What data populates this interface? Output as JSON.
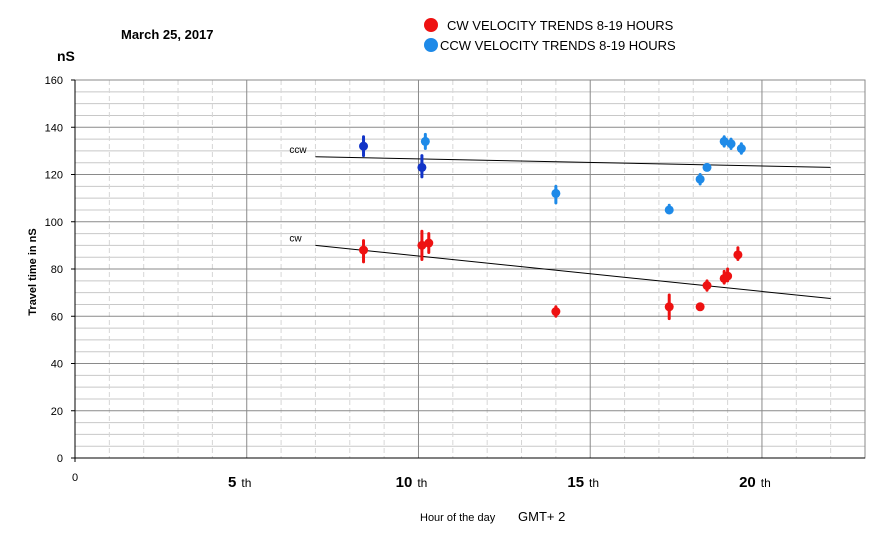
{
  "chart_data": {
    "type": "scatter",
    "date": "March 25,  2017",
    "yunit": "nS",
    "ylabel": "Travel time in nS",
    "xlabel_main": "Hour of the day",
    "xlabel_tz": "GMT+ 2",
    "xlim": [
      0,
      23
    ],
    "ylim": [
      0,
      160
    ],
    "yticks": [
      0,
      20,
      40,
      60,
      80,
      100,
      120,
      140,
      160
    ],
    "xticks": [
      {
        "x": 0,
        "num": "0",
        "suffix": ""
      },
      {
        "x": 5,
        "num": "5",
        "suffix": "th"
      },
      {
        "x": 10,
        "num": "10",
        "suffix": "th"
      },
      {
        "x": 15,
        "num": "15",
        "suffix": "th"
      },
      {
        "x": 20,
        "num": "20",
        "suffix": "th"
      }
    ],
    "grid": true,
    "legend": [
      {
        "label": "CW VELOCITY TRENDS  8-19 HOURS",
        "color": "#ee1111"
      },
      {
        "label": "CCW VELOCITY TRENDS 8-19  HOURS",
        "color": "#1e8ae8"
      }
    ],
    "series": [
      {
        "color": "#ee1111",
        "points": [
          {
            "x": 8.4,
            "y": 88,
            "lo": 83,
            "hi": 92
          },
          {
            "x": 10.1,
            "y": 90,
            "lo": 84,
            "hi": 96
          },
          {
            "x": 10.3,
            "y": 91,
            "lo": 87,
            "hi": 95
          },
          {
            "x": 14.0,
            "y": 62,
            "lo": 60,
            "hi": 64
          },
          {
            "x": 17.3,
            "y": 64,
            "lo": 59,
            "hi": 69
          },
          {
            "x": 18.2,
            "y": 64,
            "lo": 63,
            "hi": 65
          },
          {
            "x": 18.4,
            "y": 73,
            "lo": 71,
            "hi": 75
          },
          {
            "x": 18.9,
            "y": 76,
            "lo": 74,
            "hi": 79
          },
          {
            "x": 19.0,
            "y": 77,
            "lo": 75,
            "hi": 80
          },
          {
            "x": 19.3,
            "y": 86,
            "lo": 84,
            "hi": 89
          }
        ]
      },
      {
        "color": "#1e8ae8",
        "points": [
          {
            "x": 8.4,
            "y": 132,
            "lo": 128,
            "hi": 136,
            "dark": true
          },
          {
            "x": 10.1,
            "y": 123,
            "lo": 119,
            "hi": 128,
            "dark": true
          },
          {
            "x": 10.2,
            "y": 134,
            "lo": 131,
            "hi": 137
          },
          {
            "x": 14.0,
            "y": 112,
            "lo": 108,
            "hi": 115
          },
          {
            "x": 17.3,
            "y": 105,
            "lo": 104,
            "hi": 107
          },
          {
            "x": 18.2,
            "y": 118,
            "lo": 116,
            "hi": 120
          },
          {
            "x": 18.4,
            "y": 123,
            "lo": 122,
            "hi": 124
          },
          {
            "x": 18.9,
            "y": 134,
            "lo": 132,
            "hi": 136
          },
          {
            "x": 19.1,
            "y": 133,
            "lo": 131,
            "hi": 135
          },
          {
            "x": 19.4,
            "y": 131,
            "lo": 129,
            "hi": 133
          }
        ]
      }
    ],
    "trendlines": [
      {
        "label": "ccw",
        "x": [
          7,
          22
        ],
        "y": [
          127.5,
          123
        ]
      },
      {
        "label": "cw",
        "x": [
          7,
          22
        ],
        "y": [
          90,
          67.5
        ]
      }
    ]
  }
}
